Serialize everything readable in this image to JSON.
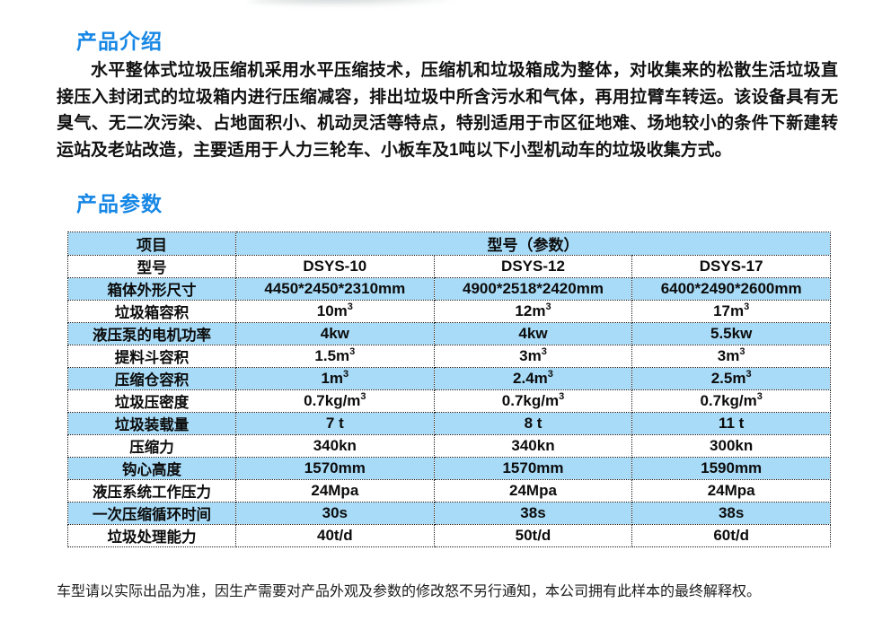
{
  "page": {
    "intro_heading": "产品介绍",
    "intro_text": "水平整体式垃圾压缩机采用水平压缩技术，压缩机和垃圾箱成为整体，对收集来的松散生活垃圾直接压入封闭式的垃圾箱内进行压缩减容，排出垃圾中所含污水和气体，再用拉臂车转运。该设备具有无臭气、无二次污染、占地面积小、机动灵活等特点，特别适用于市区征地难、场地较小的条件下新建转运站及老站改造，主要适用于人力三轮车、小板车及1吨以下小型机动车的垃圾收集方式。",
    "params_heading": "产品参数",
    "footer_note": "车型请以实际出品为准，因生产需要对产品外观及参数的修改怒不另行通知，本公司拥有此样本的最终解释权。"
  },
  "colors": {
    "heading_blue": "#1787e5",
    "row_blue": "#a8dbf7",
    "border_dotted": "#1a1a1a"
  },
  "table": {
    "header": {
      "item_label": "项目",
      "models_label": "型号（参数）"
    },
    "rows": [
      {
        "label": "型号",
        "v1": "DSYS-10",
        "v2": "DSYS-12",
        "v3": "DSYS-17"
      },
      {
        "label": "箱体外形尺寸",
        "v1": "4450*2450*2310mm",
        "v2": "4900*2518*2420mm",
        "v3": "6400*2490*2600mm"
      },
      {
        "label": "垃圾箱容积",
        "v1": "10m³",
        "v2": "12m³",
        "v3": "17m³"
      },
      {
        "label": "液压泵的电机功率",
        "v1": "4kw",
        "v2": "4kw",
        "v3": "5.5kw"
      },
      {
        "label": "提料斗容积",
        "v1": "1.5m³",
        "v2": "3m³",
        "v3": "3m³"
      },
      {
        "label": "压缩仓容积",
        "v1": "1m³",
        "v2": "2.4m³",
        "v3": "2.5m³"
      },
      {
        "label": "垃圾压密度",
        "v1": "0.7kg/m³",
        "v2": "0.7kg/m³",
        "v3": "0.7kg/m³"
      },
      {
        "label": "垃圾装载量",
        "v1": "7 t",
        "v2": "8 t",
        "v3": "11 t"
      },
      {
        "label": "压缩力",
        "v1": "340kn",
        "v2": "340kn",
        "v3": "300kn"
      },
      {
        "label": "钩心高度",
        "v1": "1570mm",
        "v2": "1570mm",
        "v3": "1590mm"
      },
      {
        "label": "液压系统工作压力",
        "v1": "24Mpa",
        "v2": "24Mpa",
        "v3": "24Mpa"
      },
      {
        "label": "一次压缩循环时间",
        "v1": "30s",
        "v2": "38s",
        "v3": "38s"
      },
      {
        "label": "垃圾处理能力",
        "v1": "40t/d",
        "v2": "50t/d",
        "v3": "60t/d"
      }
    ]
  }
}
